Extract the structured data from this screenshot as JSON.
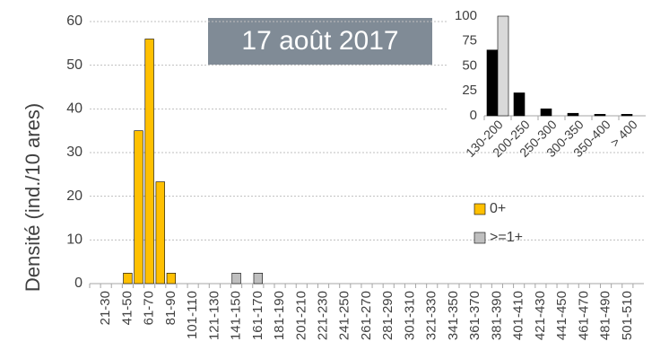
{
  "chart_data": [
    {
      "type": "bar",
      "title": "17 août 2017",
      "y_label": "Densité (ind./10 ares)",
      "categories": [
        null,
        "21-30",
        null,
        "41-50",
        null,
        "61-70",
        null,
        "81-90",
        null,
        "101-110",
        null,
        "121-130",
        null,
        "141-150",
        null,
        "161-170",
        null,
        "181-190",
        null,
        "201-210",
        null,
        "221-230",
        null,
        "241-250",
        null,
        "261-270",
        null,
        "281-290",
        null,
        "301-310",
        null,
        "321-330",
        null,
        "341-350",
        null,
        "361-370",
        null,
        "381-390",
        null,
        "401-410",
        null,
        "421-430",
        null,
        "441-450",
        null,
        "461-470",
        null,
        "481-490",
        null,
        "501-510",
        null
      ],
      "series": [
        {
          "name": "0+",
          "color": "#ffc000",
          "values": [
            0,
            0,
            0,
            2.4,
            35,
            56,
            23.3,
            2.4,
            0,
            0,
            0,
            0,
            0,
            0,
            0,
            0,
            0,
            0,
            0,
            0,
            0,
            0,
            0,
            0,
            0,
            0,
            0,
            0,
            0,
            0,
            0,
            0,
            0,
            0,
            0,
            0,
            0,
            0,
            0,
            0,
            0,
            0,
            0,
            0,
            0,
            0,
            0,
            0,
            0,
            0,
            0
          ]
        },
        {
          "name": ">=1+",
          "color": "#bfbfbf",
          "values": [
            0,
            0,
            0,
            0,
            0,
            0,
            0,
            0,
            0,
            0,
            0,
            0,
            0,
            2.4,
            0,
            2.4,
            0,
            0,
            0,
            0,
            0,
            0,
            0,
            0,
            0,
            0,
            0,
            0,
            0,
            0,
            0,
            0,
            0,
            0,
            0,
            0,
            0,
            0,
            0,
            0,
            0,
            0,
            0,
            0,
            0,
            0,
            0,
            0,
            0,
            0,
            0
          ]
        }
      ],
      "ylim": [
        0,
        60
      ],
      "yticks": [
        0,
        10,
        20,
        30,
        40,
        50,
        60
      ],
      "grid": true
    },
    {
      "type": "bar",
      "categories": [
        "130-200",
        "200-250",
        "250-300",
        "300-350",
        "350-400",
        "> 400"
      ],
      "series": [
        {
          "color": "#000000",
          "values": [
            66,
            23,
            7,
            2.5,
            1.5,
            1.5
          ]
        },
        {
          "color": "#d9d9d9",
          "values": [
            100,
            null,
            null,
            null,
            null,
            null
          ]
        }
      ],
      "ylim": [
        0,
        100
      ],
      "yticks": [
        0,
        25,
        50,
        75,
        100
      ],
      "grid": false
    }
  ]
}
